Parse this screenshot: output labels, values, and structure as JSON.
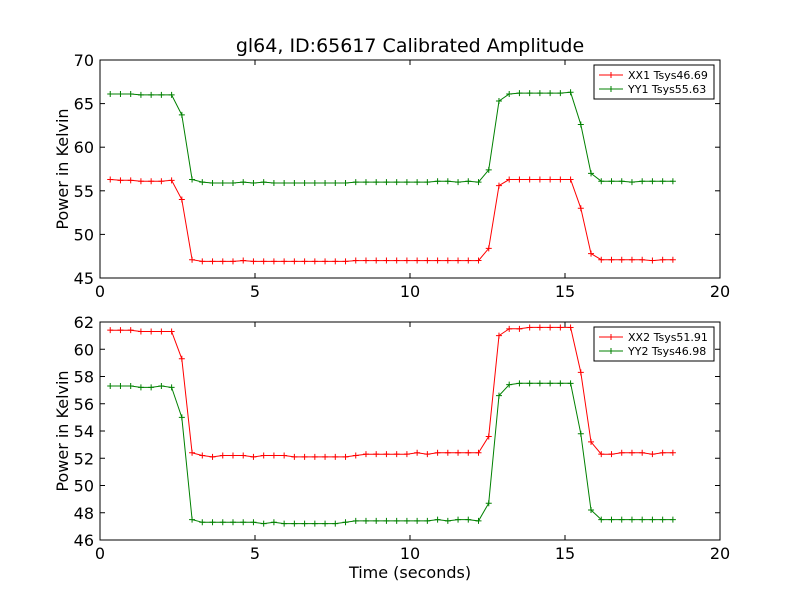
{
  "figure": {
    "title": "gl64, ID:65617 Calibrated Amplitude"
  },
  "chart_data": [
    {
      "type": "line",
      "title": "gl64, ID:65617 Calibrated Amplitude",
      "xlabel": "",
      "ylabel": "Power in Kelvin",
      "xlim": [
        0,
        20
      ],
      "ylim": [
        45,
        70
      ],
      "xticks": [
        0,
        5,
        10,
        15,
        20
      ],
      "yticks": [
        45,
        50,
        55,
        60,
        65,
        70
      ],
      "grid": false,
      "legend_position": "top-right",
      "x": [
        0.33,
        0.66,
        0.99,
        1.32,
        1.65,
        1.98,
        2.31,
        2.64,
        2.97,
        3.3,
        3.63,
        3.96,
        4.29,
        4.62,
        4.95,
        5.28,
        5.61,
        5.94,
        6.27,
        6.6,
        6.93,
        7.26,
        7.59,
        7.92,
        8.25,
        8.58,
        8.91,
        9.24,
        9.57,
        9.9,
        10.23,
        10.56,
        10.89,
        11.22,
        11.55,
        11.88,
        12.21,
        12.54,
        12.87,
        13.2,
        13.53,
        13.86,
        14.19,
        14.52,
        14.85,
        15.18,
        15.51,
        15.84,
        16.17,
        16.5,
        16.83,
        17.16,
        17.49,
        17.82,
        18.15,
        18.48
      ],
      "series": [
        {
          "name": "XX1 Tsys46.69",
          "color": "#ff0000",
          "values": [
            56.3,
            56.2,
            56.2,
            56.1,
            56.1,
            56.1,
            56.2,
            54.0,
            47.1,
            46.9,
            46.9,
            46.9,
            46.9,
            47.0,
            46.9,
            46.9,
            46.9,
            46.9,
            46.9,
            46.9,
            46.9,
            46.9,
            46.9,
            46.9,
            47.0,
            47.0,
            47.0,
            47.0,
            47.0,
            47.0,
            47.0,
            47.0,
            47.0,
            47.0,
            47.0,
            47.0,
            47.0,
            48.4,
            55.6,
            56.3,
            56.3,
            56.3,
            56.3,
            56.3,
            56.3,
            56.3,
            53.0,
            47.8,
            47.1,
            47.1,
            47.1,
            47.1,
            47.1,
            47.0,
            47.1,
            47.1
          ]
        },
        {
          "name": "YY1 Tsys55.63",
          "color": "#008000",
          "values": [
            66.1,
            66.1,
            66.1,
            66.0,
            66.0,
            66.0,
            66.0,
            63.7,
            56.3,
            56.0,
            55.9,
            55.9,
            55.9,
            56.0,
            55.9,
            56.0,
            55.9,
            55.9,
            55.9,
            55.9,
            55.9,
            55.9,
            55.9,
            55.9,
            56.0,
            56.0,
            56.0,
            56.0,
            56.0,
            56.0,
            56.0,
            56.0,
            56.1,
            56.1,
            56.0,
            56.1,
            56.0,
            57.4,
            65.3,
            66.1,
            66.2,
            66.2,
            66.2,
            66.2,
            66.2,
            66.3,
            62.6,
            57.0,
            56.1,
            56.1,
            56.1,
            56.0,
            56.1,
            56.1,
            56.1,
            56.1
          ]
        }
      ]
    },
    {
      "type": "line",
      "title": "",
      "xlabel": "Time (seconds)",
      "ylabel": "Power in Kelvin",
      "xlim": [
        0,
        20
      ],
      "ylim": [
        46,
        62
      ],
      "xticks": [
        0,
        5,
        10,
        15,
        20
      ],
      "yticks": [
        46,
        48,
        50,
        52,
        54,
        56,
        58,
        60,
        62
      ],
      "grid": false,
      "legend_position": "top-right",
      "x": [
        0.33,
        0.66,
        0.99,
        1.32,
        1.65,
        1.98,
        2.31,
        2.64,
        2.97,
        3.3,
        3.63,
        3.96,
        4.29,
        4.62,
        4.95,
        5.28,
        5.61,
        5.94,
        6.27,
        6.6,
        6.93,
        7.26,
        7.59,
        7.92,
        8.25,
        8.58,
        8.91,
        9.24,
        9.57,
        9.9,
        10.23,
        10.56,
        10.89,
        11.22,
        11.55,
        11.88,
        12.21,
        12.54,
        12.87,
        13.2,
        13.53,
        13.86,
        14.19,
        14.52,
        14.85,
        15.18,
        15.51,
        15.84,
        16.17,
        16.5,
        16.83,
        17.16,
        17.49,
        17.82,
        18.15,
        18.48
      ],
      "series": [
        {
          "name": "XX2 Tsys51.91",
          "color": "#ff0000",
          "values": [
            61.4,
            61.4,
            61.4,
            61.3,
            61.3,
            61.3,
            61.3,
            59.3,
            52.4,
            52.2,
            52.1,
            52.2,
            52.2,
            52.2,
            52.1,
            52.2,
            52.2,
            52.2,
            52.1,
            52.1,
            52.1,
            52.1,
            52.1,
            52.1,
            52.2,
            52.3,
            52.3,
            52.3,
            52.3,
            52.3,
            52.4,
            52.3,
            52.4,
            52.4,
            52.4,
            52.4,
            52.4,
            53.6,
            61.0,
            61.5,
            61.5,
            61.6,
            61.6,
            61.6,
            61.6,
            61.6,
            58.3,
            53.2,
            52.3,
            52.3,
            52.4,
            52.4,
            52.4,
            52.3,
            52.4,
            52.4
          ]
        },
        {
          "name": "YY2 Tsys46.98",
          "color": "#008000",
          "values": [
            57.3,
            57.3,
            57.3,
            57.2,
            57.2,
            57.3,
            57.2,
            55.0,
            47.5,
            47.3,
            47.3,
            47.3,
            47.3,
            47.3,
            47.3,
            47.2,
            47.3,
            47.2,
            47.2,
            47.2,
            47.2,
            47.2,
            47.2,
            47.3,
            47.4,
            47.4,
            47.4,
            47.4,
            47.4,
            47.4,
            47.4,
            47.4,
            47.5,
            47.4,
            47.5,
            47.5,
            47.4,
            48.7,
            56.6,
            57.4,
            57.5,
            57.5,
            57.5,
            57.5,
            57.5,
            57.5,
            53.8,
            48.2,
            47.5,
            47.5,
            47.5,
            47.5,
            47.5,
            47.5,
            47.5,
            47.5
          ]
        }
      ]
    }
  ]
}
